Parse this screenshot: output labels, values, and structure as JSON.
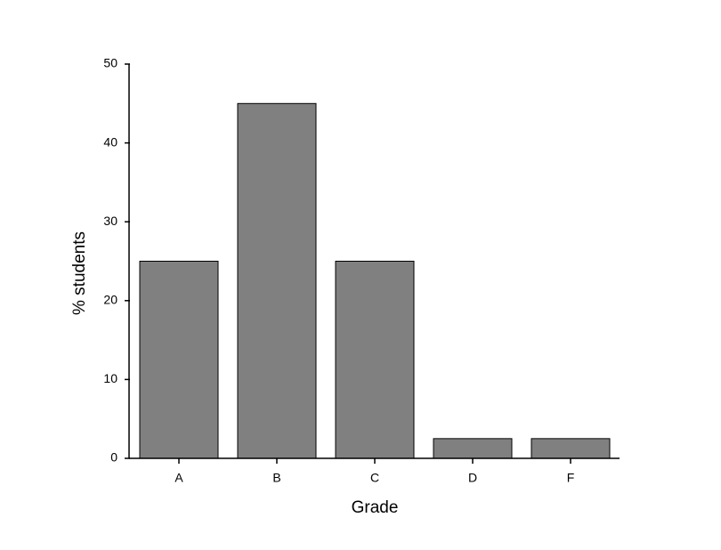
{
  "chart_data": {
    "type": "bar",
    "xlabel": "Grade",
    "ylabel": "% students",
    "categories": [
      "A",
      "B",
      "C",
      "D",
      "F"
    ],
    "values": [
      25,
      45,
      25,
      2.5,
      2.5
    ],
    "color": "#808080",
    "ylim": [
      0,
      50
    ],
    "yticks": [
      0,
      10,
      20,
      30,
      40,
      50
    ],
    "grid": false
  }
}
